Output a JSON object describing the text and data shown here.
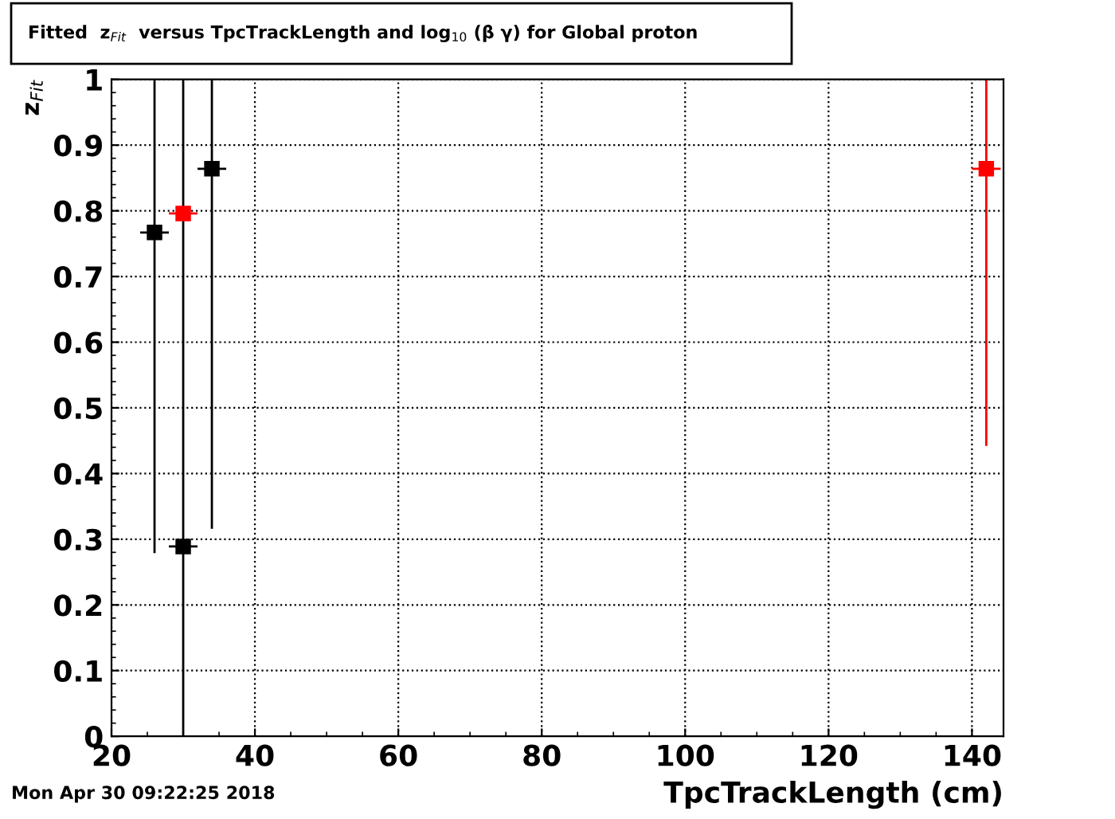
{
  "chart_data": {
    "type": "scatter",
    "title": "Fitted  z$_{Fit}$  versus TpcTrackLength and log$_{10}$ (β γ) for Global proton",
    "xlabel": "TpcTrackLength (cm)",
    "ylabel": "z$_{Fit}$",
    "annotations": [
      "Mon Apr 30 09:22:25 2018"
    ],
    "series": [
      {
        "color": "#000000",
        "x": [
          26,
          30,
          34
        ],
        "values": [
          0.767,
          0.289,
          0.864
        ],
        "errors": [
          [
            0.279,
            1
          ],
          [
            0,
            1
          ],
          [
            0.316,
            1
          ]
        ],
        "xerrors": [
          2,
          2,
          2
        ]
      },
      {
        "color": "#ff0000",
        "x": [
          30,
          142
        ],
        "values": [
          0.796,
          0.864
        ],
        "errors": [
          null,
          [
            0.442,
            1
          ]
        ],
        "xerrors": [
          2,
          2
        ]
      }
    ],
    "xlim": [
      20,
      144.4
    ],
    "xticks": [
      20,
      40,
      60,
      80,
      100,
      120,
      140
    ],
    "ylim": [
      0,
      1
    ],
    "yticks": [
      0,
      0.1,
      0.2,
      0.3,
      0.4,
      0.5,
      0.6,
      0.7,
      0.8,
      0.9,
      1
    ],
    "grid": true,
    "marker": "square",
    "legend": false
  }
}
